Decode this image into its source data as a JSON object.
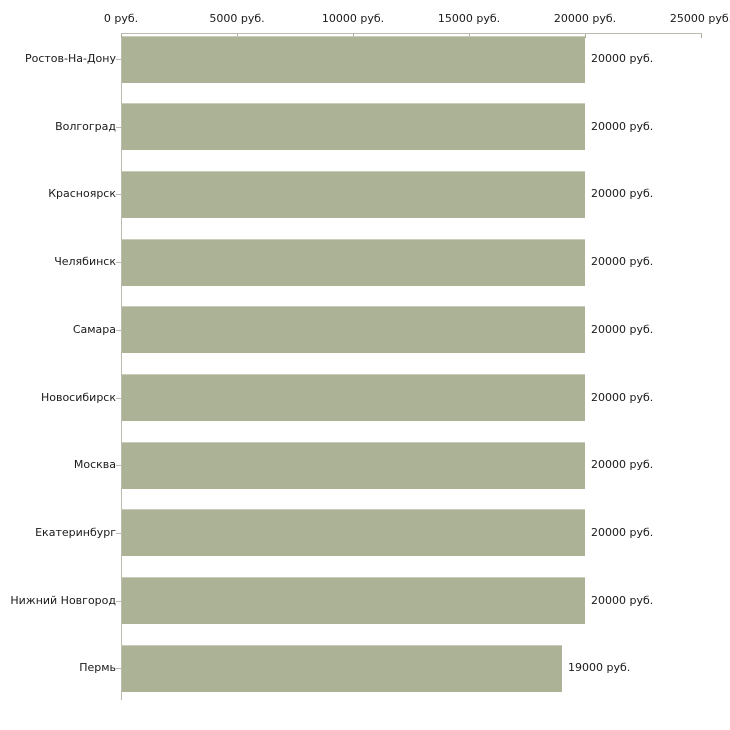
{
  "chart_data": {
    "type": "bar",
    "orientation": "horizontal",
    "title": "",
    "xlabel": "",
    "ylabel": "",
    "unit": "руб.",
    "xlim": [
      0,
      25000
    ],
    "grid": false,
    "legend": false,
    "axis_position": "top",
    "x_tick_values": [
      0,
      5000,
      10000,
      15000,
      20000,
      25000
    ],
    "x_tick_labels": [
      "0 руб.",
      "5000 руб.",
      "10000 руб.",
      "15000 руб.",
      "20000 руб.",
      "25000 руб."
    ],
    "categories": [
      "Ростов-На-Дону",
      "Волгоград",
      "Красноярск",
      "Челябинск",
      "Самара",
      "Новосибирск",
      "Москва",
      "Екатеринбург",
      "Нижний Новгород",
      "Пермь"
    ],
    "values": [
      20000,
      20000,
      20000,
      20000,
      20000,
      20000,
      20000,
      20000,
      20000,
      19000
    ],
    "value_labels": [
      "20000 руб.",
      "20000 руб.",
      "20000 руб.",
      "20000 руб.",
      "20000 руб.",
      "20000 руб.",
      "20000 руб.",
      "20000 руб.",
      "20000 руб.",
      "19000 руб."
    ],
    "colors": {
      "bar": "#acb296",
      "axis": "#bcbcae",
      "tick": "#adad93",
      "text": "#1a1a1a",
      "background": "#ffffff"
    }
  }
}
